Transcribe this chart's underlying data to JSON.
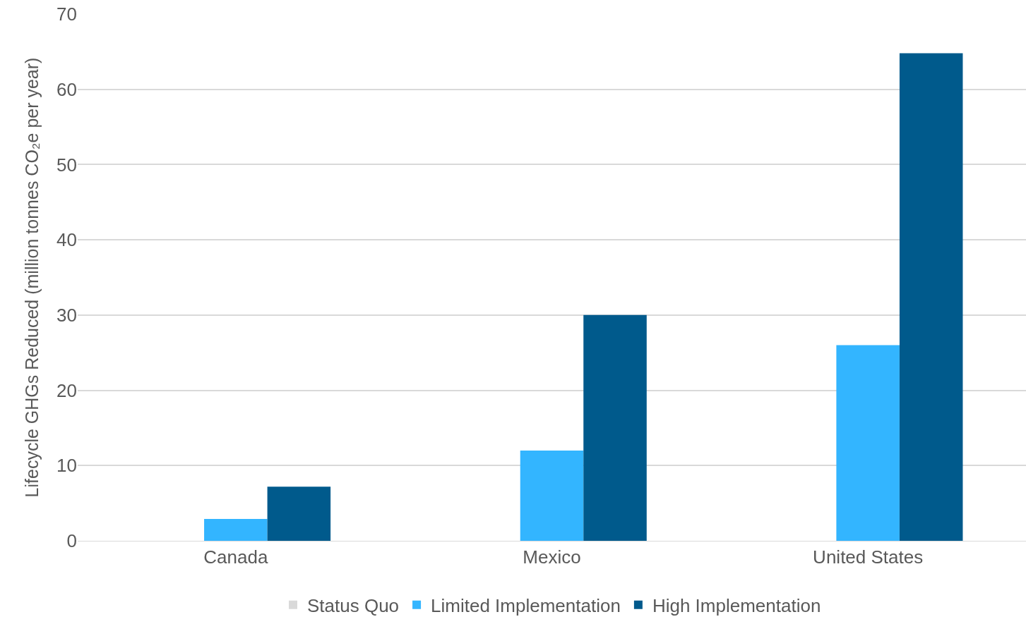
{
  "chart_data": {
    "type": "bar",
    "ylabel": "Lifecycle GHGs Reduced (million tonnes CO₂e per year)",
    "categories": [
      "Canada",
      "Mexico",
      "United States"
    ],
    "series": [
      {
        "name": "Status Quo",
        "color": "#d9d9d9",
        "values": [
          0,
          0,
          0
        ]
      },
      {
        "name": "Limited Implementation",
        "color": "#33b5ff",
        "values": [
          2.9,
          12.0,
          26.0
        ]
      },
      {
        "name": "High Implementation",
        "color": "#005a8c",
        "values": [
          7.2,
          30.0,
          64.8
        ]
      }
    ],
    "ylim": [
      0,
      70
    ],
    "yticks": [
      0,
      10,
      20,
      30,
      40,
      50,
      60,
      70
    ],
    "grid": "y",
    "legend": "bottom"
  }
}
